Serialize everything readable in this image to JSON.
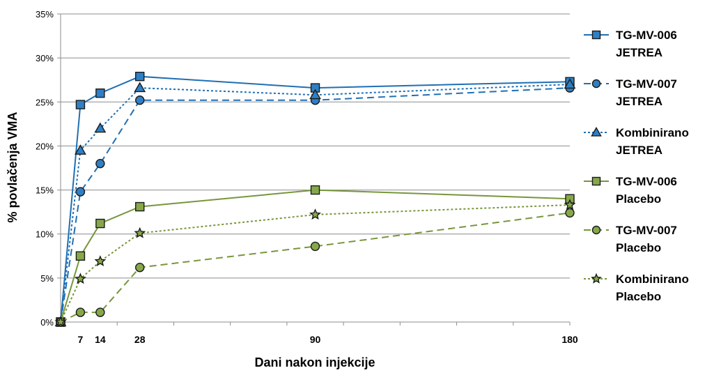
{
  "chart_data": {
    "type": "line",
    "title": "",
    "xlabel": "Dani nakon injekcije",
    "ylabel": "% povlačenja VMA",
    "x": [
      0,
      7,
      14,
      28,
      90,
      180
    ],
    "x_tick_labels": [
      "7",
      "14",
      "28",
      "90",
      "180"
    ],
    "x_tick_values": [
      7,
      14,
      28,
      90,
      180
    ],
    "xlim": [
      0,
      180
    ],
    "ylim": [
      0,
      0.35
    ],
    "y_ticks": [
      0,
      0.05,
      0.1,
      0.15,
      0.2,
      0.25,
      0.3,
      0.35
    ],
    "y_tick_labels": [
      "0%",
      "5%",
      "10%",
      "15%",
      "20%",
      "25%",
      "30%",
      "35%"
    ],
    "grid": "horizontal",
    "legend_position": "right",
    "series": [
      {
        "name": "TG-MV-006 JETREA",
        "legend_lines": [
          "TG-MV-006",
          "JETREA"
        ],
        "color": "#1f6fb4",
        "line_style": "solid",
        "marker": "square",
        "values": [
          0.0,
          0.247,
          0.26,
          0.279,
          0.266,
          0.273
        ]
      },
      {
        "name": "TG-MV-007 JETREA",
        "legend_lines": [
          "TG-MV-007",
          "JETREA"
        ],
        "color": "#1f6fb4",
        "line_style": "dashed",
        "marker": "circle",
        "values": [
          0.0,
          0.148,
          0.18,
          0.252,
          0.252,
          0.266
        ]
      },
      {
        "name": "Kombinirano JETREA",
        "legend_lines": [
          "Kombinirano",
          "JETREA"
        ],
        "color": "#1f6fb4",
        "line_style": "dotted",
        "marker": "triangle",
        "values": [
          0.0,
          0.195,
          0.22,
          0.266,
          0.258,
          0.27
        ]
      },
      {
        "name": "TG-MV-006 Placebo",
        "legend_lines": [
          "TG-MV-006",
          "Placebo"
        ],
        "color": "#77963b",
        "line_style": "solid",
        "marker": "square",
        "values": [
          0.0,
          0.075,
          0.112,
          0.131,
          0.15,
          0.14
        ]
      },
      {
        "name": "TG-MV-007 Placebo",
        "legend_lines": [
          "TG-MV-007",
          "Placebo"
        ],
        "color": "#77963b",
        "line_style": "dashed",
        "marker": "circle",
        "values": [
          0.0,
          0.011,
          0.011,
          0.062,
          0.086,
          0.124
        ]
      },
      {
        "name": "Kombinirano Placebo",
        "legend_lines": [
          "Kombinirano",
          "Placebo"
        ],
        "color": "#77963b",
        "line_style": "dotted",
        "marker": "star",
        "values": [
          0.0,
          0.049,
          0.069,
          0.101,
          0.122,
          0.133
        ]
      }
    ]
  }
}
